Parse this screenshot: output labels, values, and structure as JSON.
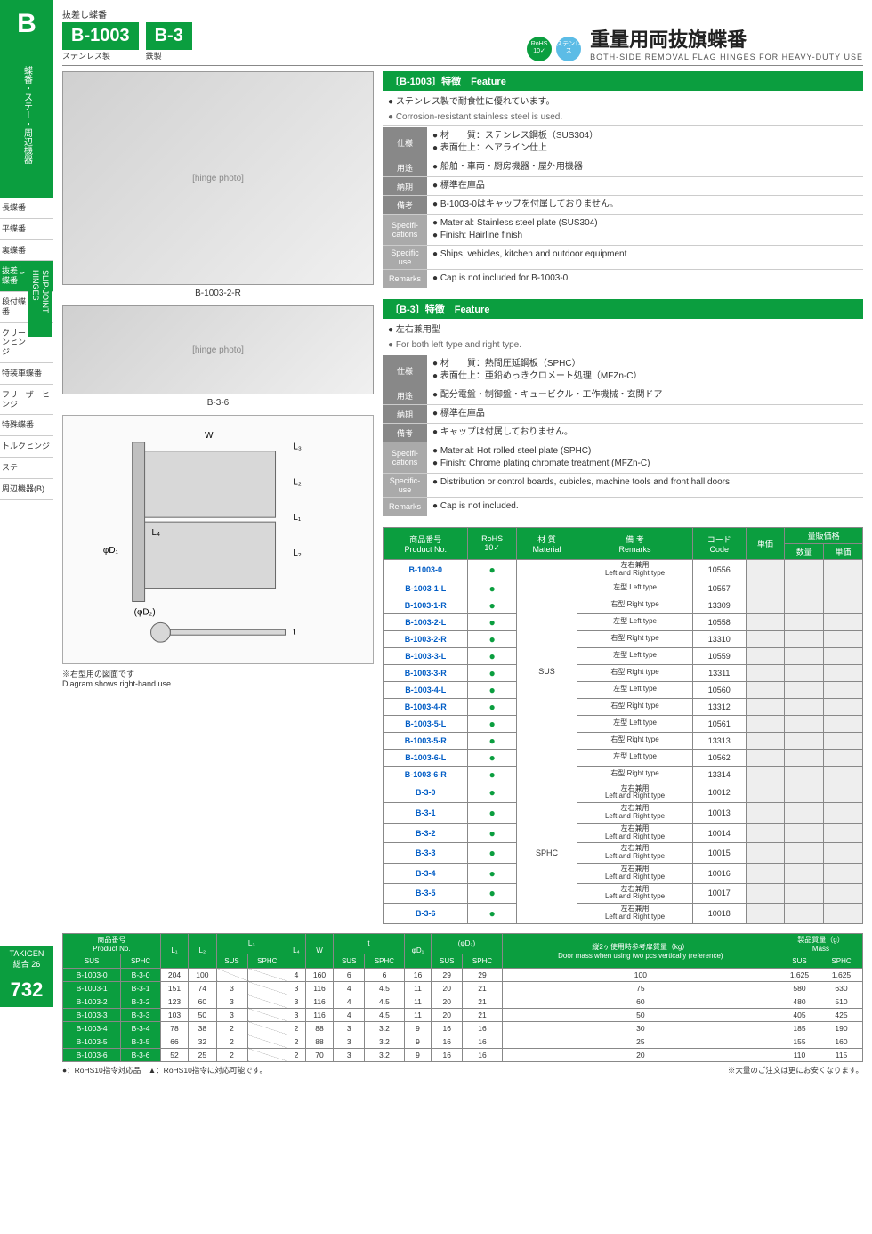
{
  "sidebar": {
    "letter": "B",
    "category_jp": "蝶番・ステー・周辺機器",
    "items": [
      "長蝶番",
      "平蝶番",
      "裏蝶番",
      "抜差し蝶番",
      "段付蝶番",
      "クリーンヒンジ",
      "特装車蝶番",
      "フリーザーヒンジ",
      "特殊蝶番",
      "トルクヒンジ",
      "ステー",
      "周辺機器(B)"
    ],
    "active_index": 3,
    "vert_label": "SLIP-JOINT HINGES",
    "footer": "TAKIGEN",
    "edition": "総合 26",
    "page_num": "732"
  },
  "header": {
    "series_label": "抜差し蝶番",
    "code1": "B-1003",
    "sub1": "ステンレス製",
    "code2": "B-3",
    "sub2": "鉄製",
    "badge_rohs": "RoHS 10✓",
    "badge_sus": "ステンレス",
    "title_jp": "重量用両抜旗蝶番",
    "title_en": "BOTH-SIDE REMOVAL FLAG HINGES FOR HEAVY-DUTY USE"
  },
  "photos": {
    "main_label": "B-1003-2-R",
    "sub_label": "B-3-6",
    "diag_note_jp": "※右型用の図面です",
    "diag_note_en": "Diagram shows right-hand use.",
    "diag_labels": {
      "W": "W",
      "L1": "L₁",
      "L2": "L₂",
      "L3": "L₃",
      "L4": "L₄",
      "D1": "φD₁",
      "D2": "(φD₂)",
      "t": "t"
    }
  },
  "feat1": {
    "head": "〔B-1003〕特徴　Feature",
    "line_jp": "● ステンレス製で耐食性に優れています。",
    "line_en": "● Corrosion-resistant stainless steel is used.",
    "specs": [
      {
        "l": "仕様",
        "t": "● 材　　質：ステンレス鋼板（SUS304）\n● 表面仕上：ヘアライン仕上"
      },
      {
        "l": "用途",
        "t": "● 船舶・車両・厨房機器・屋外用機器"
      },
      {
        "l": "納期",
        "t": "● 標準在庫品"
      },
      {
        "l": "備考",
        "t": "● B-1003-0はキャップを付属しておりません。"
      }
    ],
    "specs_en": [
      {
        "l": "Specifi-\ncations",
        "t": "● Material: Stainless steel plate (SUS304)\n● Finish: Hairline finish"
      },
      {
        "l": "Specific use",
        "t": "● Ships, vehicles, kitchen and outdoor equipment"
      },
      {
        "l": "Remarks",
        "t": "● Cap is not included for B-1003-0."
      }
    ]
  },
  "feat2": {
    "head": "〔B-3〕特徴　Feature",
    "line_jp": "● 左右兼用型",
    "line_en": "● For both left type and right type.",
    "specs": [
      {
        "l": "仕様",
        "t": "● 材　　質：熱間圧延鋼板（SPHC）\n● 表面仕上：亜鉛めっきクロメート処理（MFZn-C）"
      },
      {
        "l": "用途",
        "t": "● 配分電盤・制御盤・キュービクル・工作機械・玄関ドア"
      },
      {
        "l": "納期",
        "t": "● 標準在庫品"
      },
      {
        "l": "備考",
        "t": "● キャップは付属しておりません。"
      }
    ],
    "specs_en": [
      {
        "l": "Specifi-\ncations",
        "t": "● Material: Hot rolled steel plate (SPHC)\n● Finish: Chrome plating chromate treatment (MFZn-C)"
      },
      {
        "l": "Specific-\nuse",
        "t": "● Distribution or control boards, cubicles, machine tools and front hall doors"
      },
      {
        "l": "Remarks",
        "t": "● Cap is not included."
      }
    ]
  },
  "ptable": {
    "head": [
      "商品番号\nProduct No.",
      "RoHS\n10✓",
      "材 質\nMaterial",
      "備 考\nRemarks",
      "コード\nCode",
      "単価",
      "量販価格"
    ],
    "qty_head": [
      "数量",
      "単価"
    ],
    "rows_sus": [
      {
        "no": "B-1003-0",
        "r": "●",
        "rem": "左右兼用\nLeft and Right type",
        "code": "10556"
      },
      {
        "no": "B-1003-1-L",
        "r": "●",
        "rem": "左型 Left type",
        "code": "10557"
      },
      {
        "no": "B-1003-1-R",
        "r": "●",
        "rem": "右型 Right type",
        "code": "13309"
      },
      {
        "no": "B-1003-2-L",
        "r": "●",
        "rem": "左型 Left type",
        "code": "10558"
      },
      {
        "no": "B-1003-2-R",
        "r": "●",
        "rem": "右型 Right type",
        "code": "13310"
      },
      {
        "no": "B-1003-3-L",
        "r": "●",
        "rem": "左型 Left type",
        "code": "10559"
      },
      {
        "no": "B-1003-3-R",
        "r": "●",
        "rem": "右型 Right type",
        "code": "13311"
      },
      {
        "no": "B-1003-4-L",
        "r": "●",
        "rem": "左型 Left type",
        "code": "10560"
      },
      {
        "no": "B-1003-4-R",
        "r": "●",
        "rem": "右型 Right type",
        "code": "13312"
      },
      {
        "no": "B-1003-5-L",
        "r": "●",
        "rem": "左型 Left type",
        "code": "10561"
      },
      {
        "no": "B-1003-5-R",
        "r": "●",
        "rem": "右型 Right type",
        "code": "13313"
      },
      {
        "no": "B-1003-6-L",
        "r": "●",
        "rem": "左型 Left type",
        "code": "10562"
      },
      {
        "no": "B-1003-6-R",
        "r": "●",
        "rem": "右型 Right type",
        "code": "13314"
      }
    ],
    "mat_sus": "SUS",
    "rows_sphc": [
      {
        "no": "B-3-0",
        "r": "●",
        "rem": "左右兼用\nLeft and Right type",
        "code": "10012"
      },
      {
        "no": "B-3-1",
        "r": "●",
        "rem": "左右兼用\nLeft and Right type",
        "code": "10013"
      },
      {
        "no": "B-3-2",
        "r": "●",
        "rem": "左右兼用\nLeft and Right type",
        "code": "10014"
      },
      {
        "no": "B-3-3",
        "r": "●",
        "rem": "左右兼用\nLeft and Right type",
        "code": "10015"
      },
      {
        "no": "B-3-4",
        "r": "●",
        "rem": "左右兼用\nLeft and Right type",
        "code": "10016"
      },
      {
        "no": "B-3-5",
        "r": "●",
        "rem": "左右兼用\nLeft and Right type",
        "code": "10017"
      },
      {
        "no": "B-3-6",
        "r": "●",
        "rem": "左右兼用\nLeft and Right type",
        "code": "10018"
      }
    ],
    "mat_sphc": "SPHC"
  },
  "dtable": {
    "head1": [
      "商品番号\nProduct No.",
      "L₁",
      "L₂",
      "L₃",
      "L₄",
      "W",
      "t",
      "φD₁",
      "(φD₂)",
      "縦2ヶ使用時参考扉質量（kg）\nDoor mass when using two pcs vertically (reference)",
      "製品質量（g）\nMass"
    ],
    "sub_sus": "SUS",
    "sub_sphc": "SPHC",
    "rows": [
      {
        "s": "B-1003-0",
        "p": "B-3-0",
        "l1": "204",
        "l2": "100",
        "l3s": "",
        "l3p": "",
        "l4": "4",
        "w": "160",
        "ts": "6",
        "tp": "6",
        "d1": "16",
        "d2s": "29",
        "d2p": "29",
        "ref": "100",
        "ms": "1,625",
        "mp": "1,625"
      },
      {
        "s": "B-1003-1",
        "p": "B-3-1",
        "l1": "151",
        "l2": "74",
        "l3s": "3",
        "l3p": "",
        "l4": "3",
        "w": "116",
        "ts": "4",
        "tp": "4.5",
        "d1": "11",
        "d2s": "20",
        "d2p": "21",
        "ref": "75",
        "ms": "580",
        "mp": "630"
      },
      {
        "s": "B-1003-2",
        "p": "B-3-2",
        "l1": "123",
        "l2": "60",
        "l3s": "3",
        "l3p": "",
        "l4": "3",
        "w": "116",
        "ts": "4",
        "tp": "4.5",
        "d1": "11",
        "d2s": "20",
        "d2p": "21",
        "ref": "60",
        "ms": "480",
        "mp": "510"
      },
      {
        "s": "B-1003-3",
        "p": "B-3-3",
        "l1": "103",
        "l2": "50",
        "l3s": "3",
        "l3p": "",
        "l4": "3",
        "w": "116",
        "ts": "4",
        "tp": "4.5",
        "d1": "11",
        "d2s": "20",
        "d2p": "21",
        "ref": "50",
        "ms": "405",
        "mp": "425"
      },
      {
        "s": "B-1003-4",
        "p": "B-3-4",
        "l1": "78",
        "l2": "38",
        "l3s": "2",
        "l3p": "",
        "l4": "2",
        "w": "88",
        "ts": "3",
        "tp": "3.2",
        "d1": "9",
        "d2s": "16",
        "d2p": "16",
        "ref": "30",
        "ms": "185",
        "mp": "190"
      },
      {
        "s": "B-1003-5",
        "p": "B-3-5",
        "l1": "66",
        "l2": "32",
        "l3s": "2",
        "l3p": "",
        "l4": "2",
        "w": "88",
        "ts": "3",
        "tp": "3.2",
        "d1": "9",
        "d2s": "16",
        "d2p": "16",
        "ref": "25",
        "ms": "155",
        "mp": "160"
      },
      {
        "s": "B-1003-6",
        "p": "B-3-6",
        "l1": "52",
        "l2": "25",
        "l3s": "2",
        "l3p": "",
        "l4": "2",
        "w": "70",
        "ts": "3",
        "tp": "3.2",
        "d1": "9",
        "d2s": "16",
        "d2p": "16",
        "ref": "20",
        "ms": "110",
        "mp": "115"
      }
    ]
  },
  "footnotes": {
    "left": "●：RoHS10指令対応品　▲：RoHS10指令に対応可能です。",
    "right": "※大量のご注文は更にお安くなります。"
  }
}
